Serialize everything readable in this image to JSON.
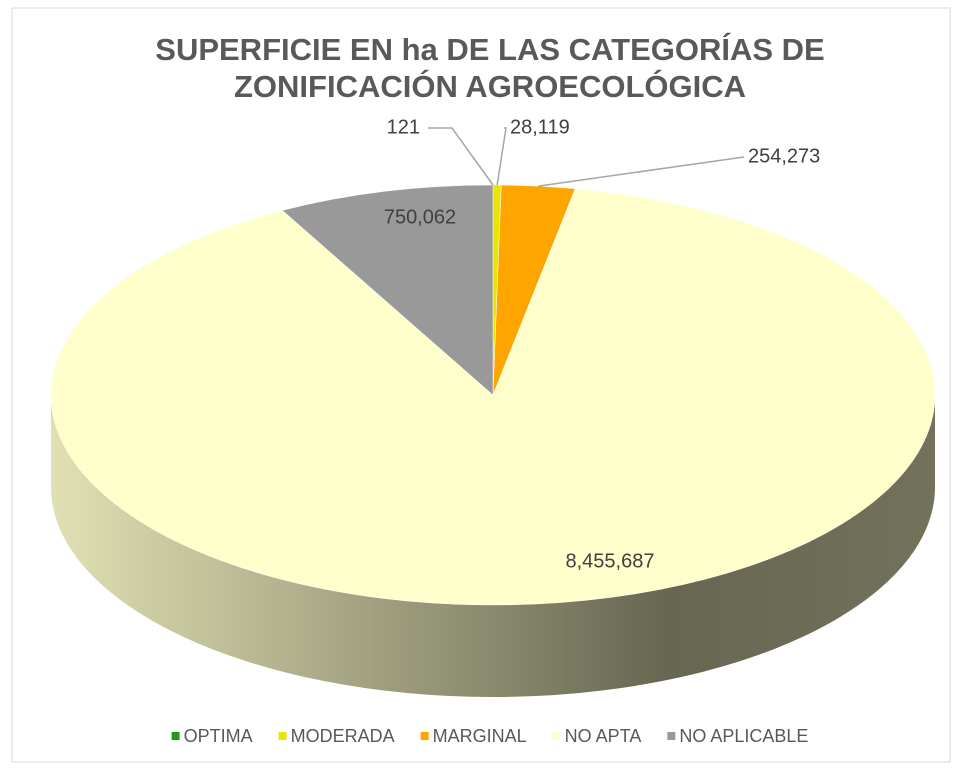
{
  "chart_data": {
    "type": "pie",
    "title": [
      "SUPERFICIE EN ha DE LAS CATEGORÍAS DE",
      "ZONIFICACIÓN AGROECOLÓGICA"
    ],
    "categories": [
      "OPTIMA",
      "MODERADA",
      "MARGINAL",
      "NO APTA",
      "NO APLICABLE"
    ],
    "values": [
      121,
      28119,
      254273,
      8455687,
      750062
    ],
    "value_labels": [
      "121",
      "28,119",
      "254,273",
      "8,455,687",
      "750,062"
    ],
    "colors": [
      "#1f9a1f",
      "#e6e600",
      "#ffa500",
      "#ffffcc",
      "#999999"
    ],
    "legend": "bottom"
  }
}
